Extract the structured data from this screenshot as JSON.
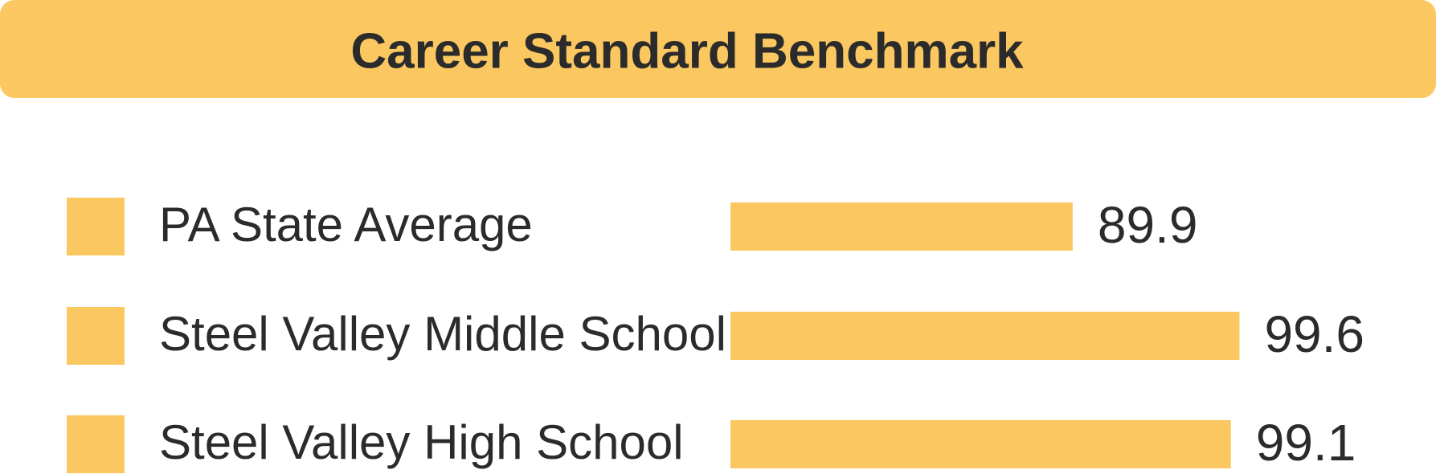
{
  "chart_data": {
    "type": "bar",
    "orientation": "horizontal",
    "title": "Career Standard Benchmark",
    "categories": [
      "PA State Average",
      "Steel Valley Middle School",
      "Steel Valley High School"
    ],
    "values": [
      89.9,
      99.6,
      99.1
    ],
    "color": "#fbc760",
    "xlim": [
      70,
      100
    ]
  }
}
